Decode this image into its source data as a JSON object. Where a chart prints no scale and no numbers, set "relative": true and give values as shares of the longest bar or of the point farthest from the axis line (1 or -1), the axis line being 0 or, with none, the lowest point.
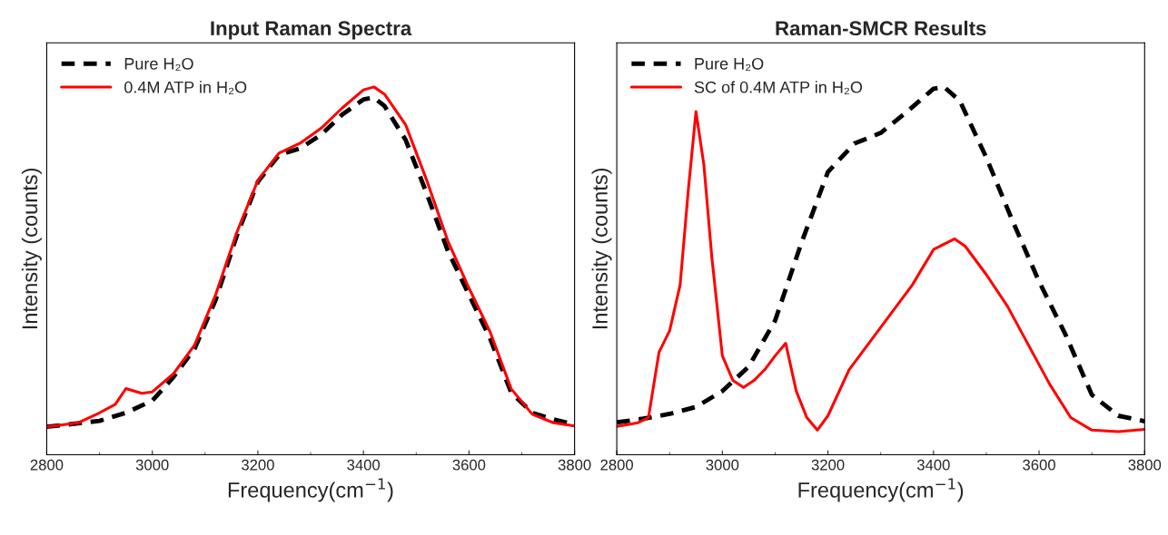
{
  "chart_data": [
    {
      "type": "line",
      "title": "Input Raman Spectra",
      "xlabel": "Frequency(cm$^{−1}$)",
      "ylabel": "Intensity (counts)",
      "relative": true,
      "xlim": [
        2800,
        3800
      ],
      "xticks": [
        2800,
        3000,
        3200,
        3400,
        3600,
        3800
      ],
      "legend": "top left",
      "grid": false,
      "series": [
        {
          "name": "Pure H₂O",
          "color": "#000000",
          "line_style": "dashed",
          "x": [
            2800,
            2900,
            2950,
            3000,
            3040,
            3080,
            3120,
            3160,
            3200,
            3240,
            3280,
            3320,
            3360,
            3400,
            3420,
            3440,
            3480,
            3520,
            3560,
            3600,
            3640,
            3680,
            3720,
            3760,
            3800
          ],
          "values": [
            0.076,
            0.092,
            0.114,
            0.147,
            0.211,
            0.288,
            0.421,
            0.595,
            0.742,
            0.815,
            0.833,
            0.87,
            0.925,
            0.966,
            0.971,
            0.948,
            0.856,
            0.71,
            0.554,
            0.435,
            0.316,
            0.169,
            0.114,
            0.096,
            0.082
          ]
        },
        {
          "name": "0.4M ATP in H₂O",
          "color": "#ff0000",
          "line_style": "solid",
          "x": [
            2800,
            2860,
            2900,
            2930,
            2950,
            2980,
            3000,
            3040,
            3080,
            3120,
            3160,
            3200,
            3240,
            3280,
            3320,
            3360,
            3400,
            3420,
            3440,
            3480,
            3520,
            3560,
            3600,
            3640,
            3680,
            3720,
            3760,
            3800
          ],
          "values": [
            0.076,
            0.087,
            0.114,
            0.137,
            0.18,
            0.167,
            0.171,
            0.22,
            0.298,
            0.435,
            0.604,
            0.746,
            0.82,
            0.847,
            0.888,
            0.943,
            0.992,
            1.0,
            0.98,
            0.897,
            0.746,
            0.581,
            0.453,
            0.334,
            0.179,
            0.11,
            0.087,
            0.078
          ]
        }
      ]
    },
    {
      "type": "line",
      "title": "Raman-SMCR Results",
      "xlabel": "Frequency(cm$^{−1}$)",
      "ylabel": "Intensity (counts)",
      "relative": true,
      "xlim": [
        2800,
        3800
      ],
      "xticks": [
        2800,
        3000,
        3200,
        3400,
        3600,
        3800
      ],
      "legend": "top left",
      "grid": false,
      "series": [
        {
          "name": "Pure H₂O",
          "color": "#000000",
          "line_style": "dashed",
          "x": [
            2800,
            2850,
            2900,
            2950,
            3000,
            3050,
            3100,
            3150,
            3200,
            3250,
            3300,
            3350,
            3400,
            3420,
            3450,
            3500,
            3550,
            3600,
            3650,
            3700,
            3750,
            3800
          ],
          "values": [
            0.088,
            0.098,
            0.111,
            0.13,
            0.173,
            0.24,
            0.365,
            0.577,
            0.769,
            0.846,
            0.875,
            0.933,
            0.995,
            1.0,
            0.962,
            0.808,
            0.635,
            0.471,
            0.327,
            0.163,
            0.106,
            0.091
          ]
        },
        {
          "name": "SC of 0.4M ATP in H₂O",
          "color": "#ff0000",
          "line_style": "solid",
          "x": [
            2800,
            2840,
            2860,
            2880,
            2900,
            2920,
            2935,
            2950,
            2965,
            2980,
            3000,
            3020,
            3040,
            3060,
            3080,
            3100,
            3120,
            3140,
            3160,
            3180,
            3200,
            3240,
            3280,
            3320,
            3360,
            3400,
            3440,
            3460,
            3500,
            3540,
            3580,
            3620,
            3660,
            3700,
            3750,
            3800
          ],
          "values": [
            0.077,
            0.087,
            0.101,
            0.279,
            0.337,
            0.462,
            0.712,
            0.933,
            0.788,
            0.538,
            0.269,
            0.202,
            0.183,
            0.202,
            0.231,
            0.269,
            0.303,
            0.173,
            0.101,
            0.067,
            0.106,
            0.231,
            0.308,
            0.385,
            0.462,
            0.558,
            0.587,
            0.567,
            0.49,
            0.404,
            0.298,
            0.192,
            0.101,
            0.067,
            0.063,
            0.069
          ]
        }
      ]
    }
  ]
}
